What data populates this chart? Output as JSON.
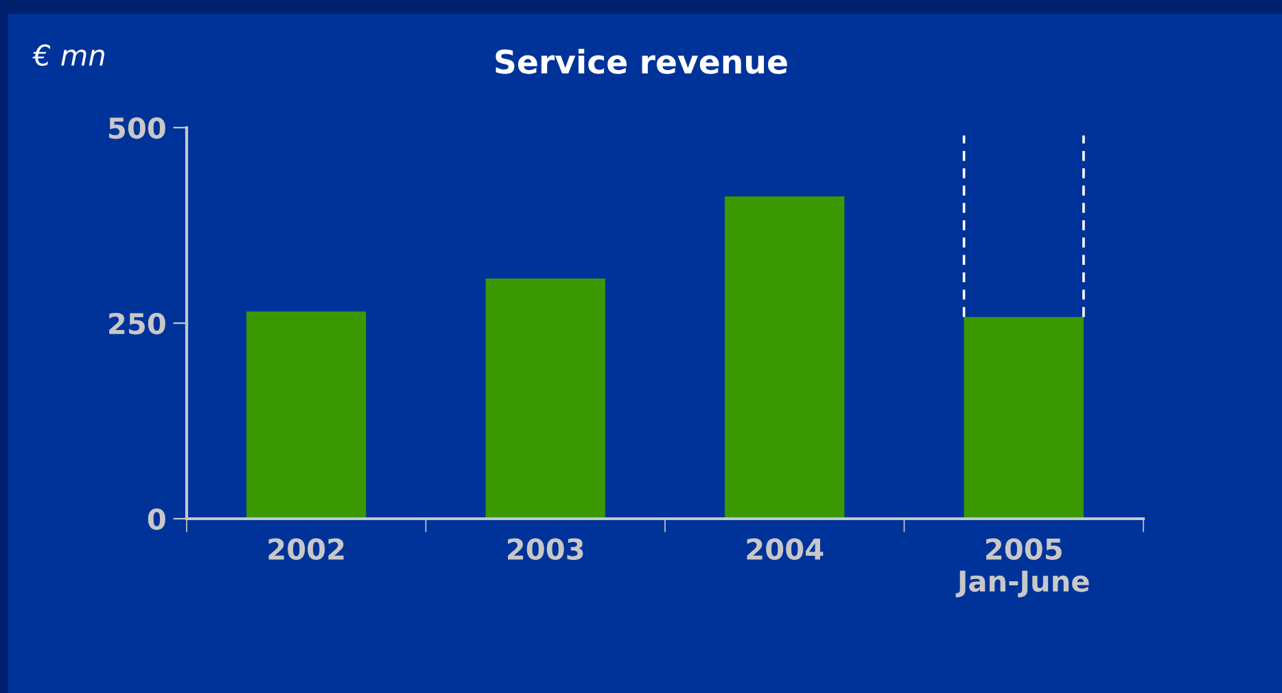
{
  "chart_data": {
    "type": "bar",
    "title": "Service revenue",
    "ylabel": "€ mn",
    "categories": [
      "2002",
      "2003",
      "2004",
      "2005\nJan-June"
    ],
    "values": [
      265,
      307,
      412,
      258
    ],
    "color": "#3a9900",
    "ylim": [
      0,
      500
    ],
    "yticks": [
      0,
      250,
      500
    ],
    "grid": false,
    "legend": false
  }
}
